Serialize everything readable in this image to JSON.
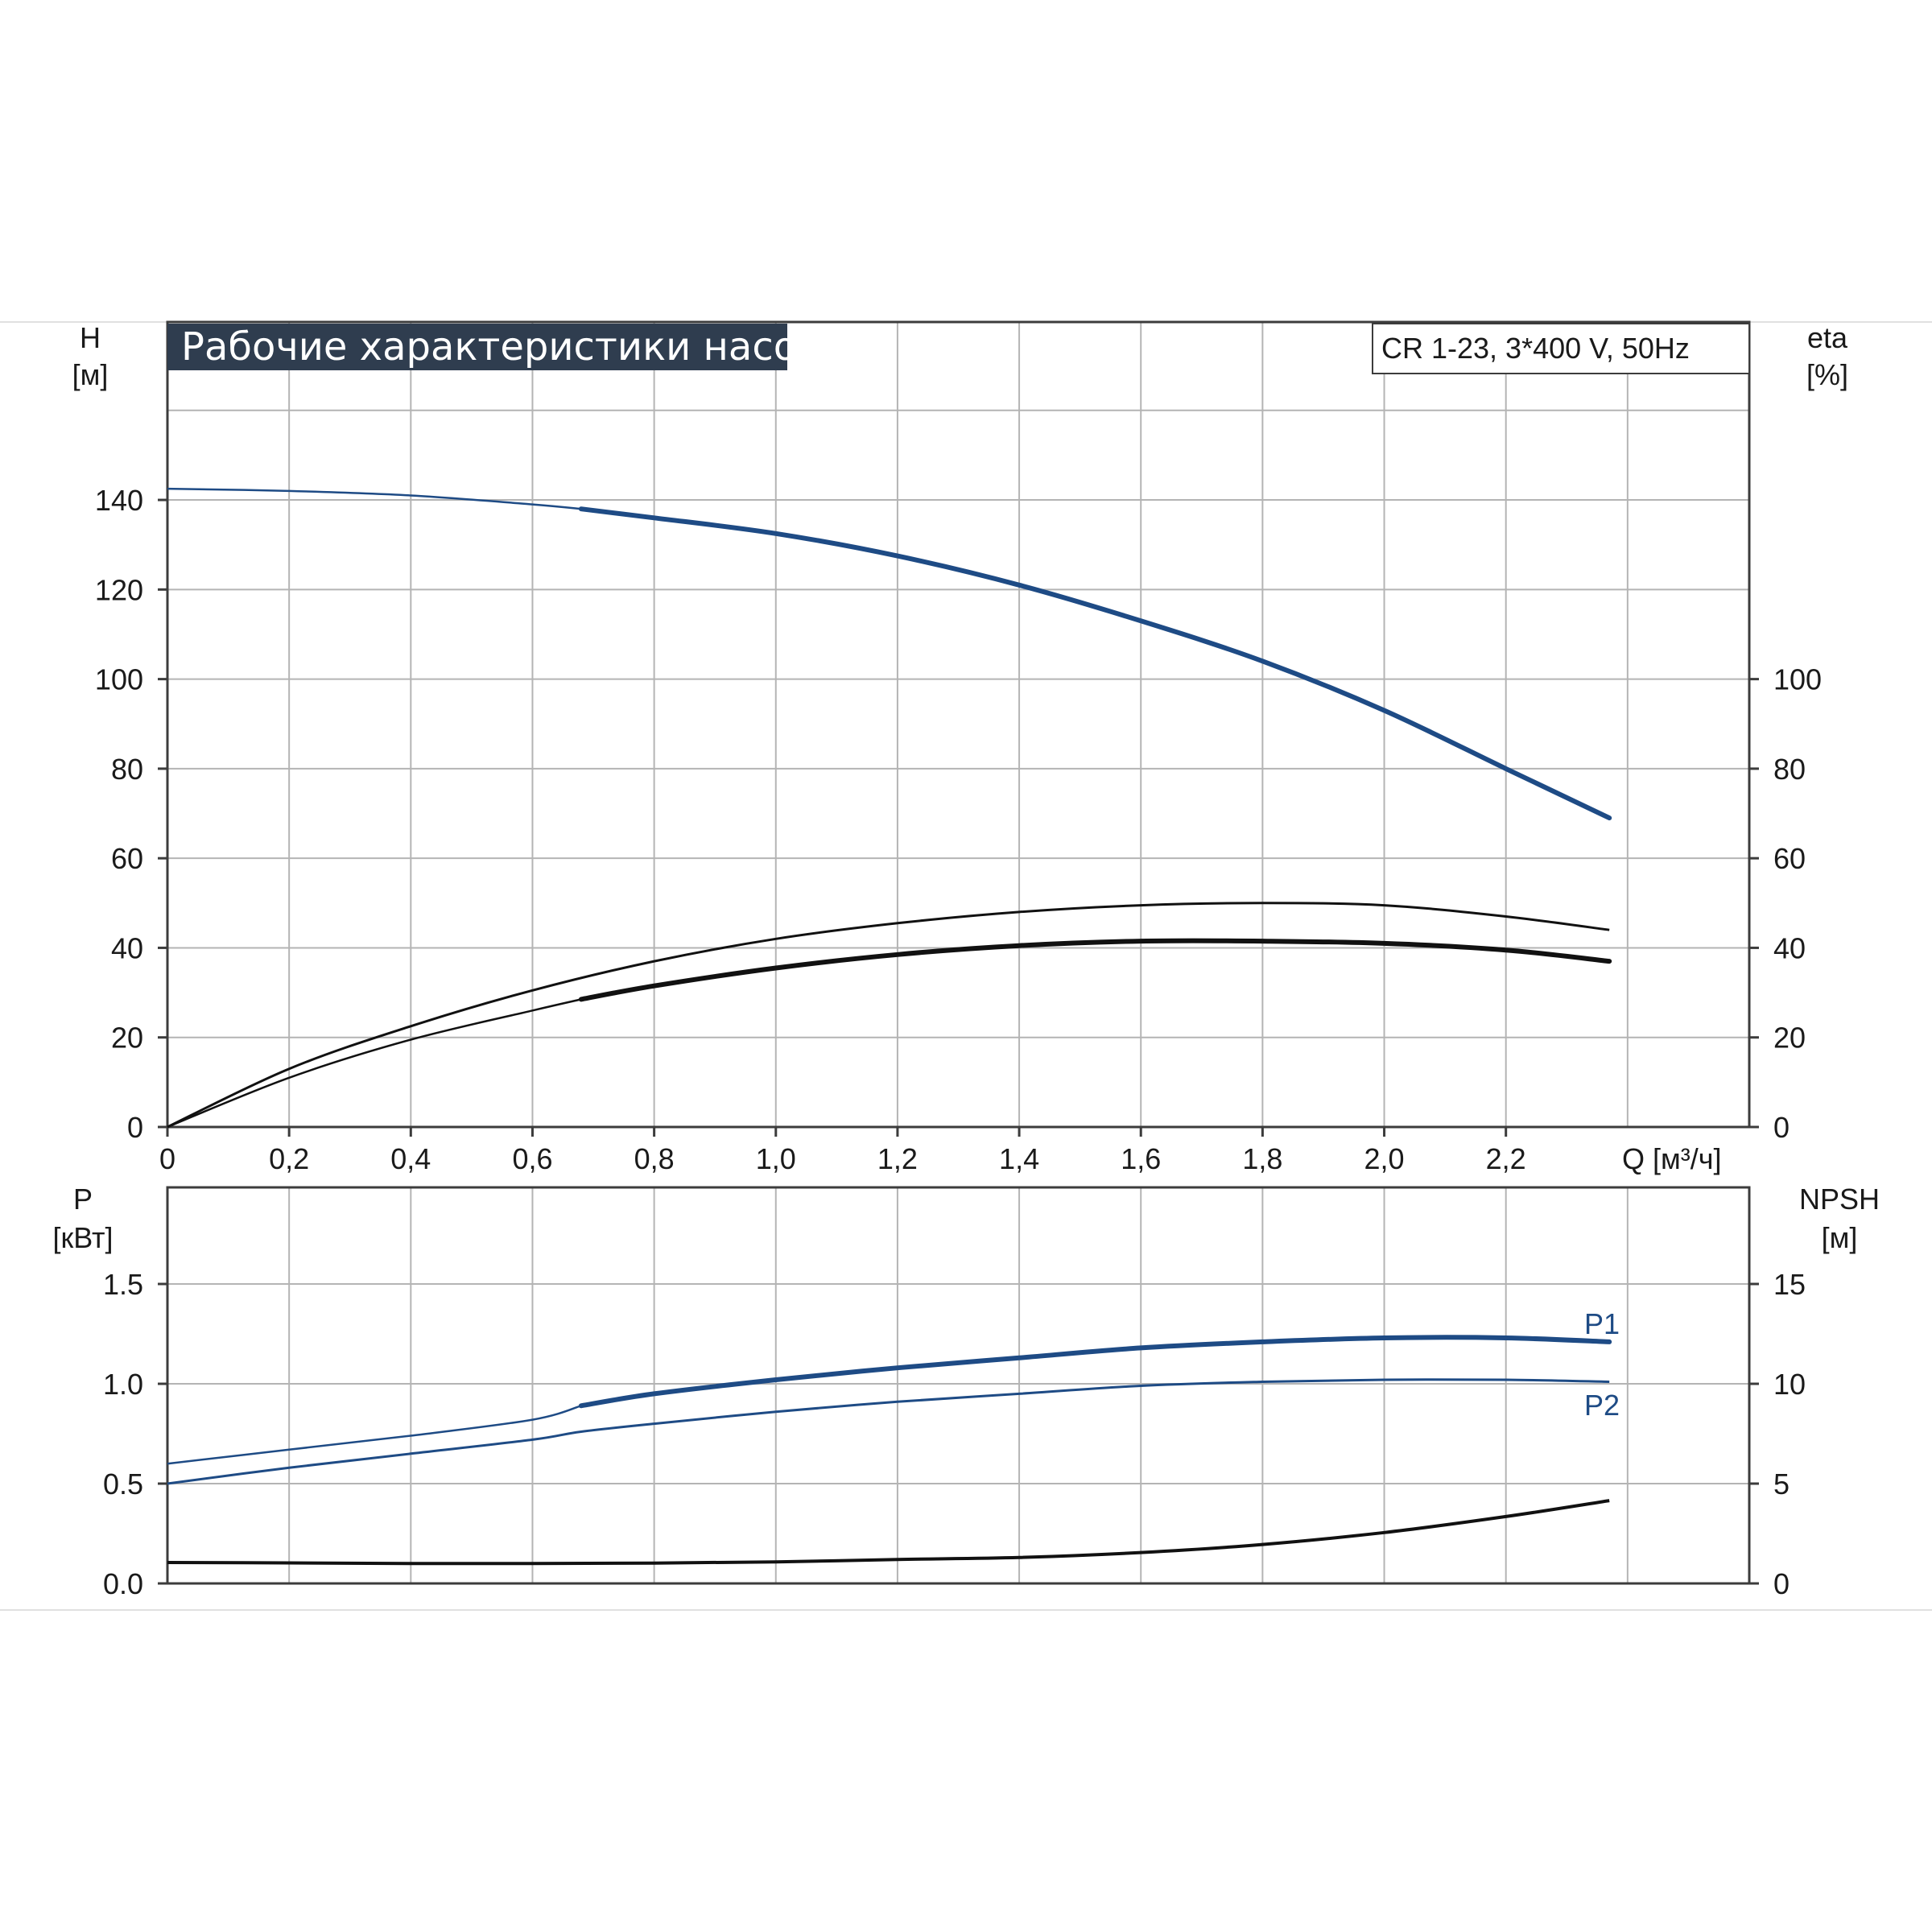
{
  "title": "Рабочие характеристики насоса",
  "subtitle": "CR 1-23, 3*400 V, 50Hz",
  "colors": {
    "blue": "#1e4b85",
    "black": "#111111",
    "title_bg": "#2f3d4f",
    "grid": "#b4b4b4"
  },
  "chart_data": [
    {
      "type": "line",
      "panel": "upper",
      "x_axis": {
        "label": "Q [м³/ч]",
        "ticks": [
          "0",
          "0,2",
          "0,4",
          "0,6",
          "0,8",
          "1,0",
          "1,2",
          "1,4",
          "1,6",
          "1,8",
          "2,0",
          "2,2"
        ],
        "range": [
          0,
          2.6
        ]
      },
      "y_left": {
        "label_line1": "H",
        "label_line2": "[м]",
        "ticks": [
          "0",
          "20",
          "40",
          "60",
          "80",
          "100",
          "120",
          "140"
        ],
        "range": [
          0,
          160
        ]
      },
      "y_right": {
        "label_line1": "eta",
        "label_line2": "[%]",
        "ticks": [
          "0",
          "20",
          "40",
          "60",
          "80",
          "100"
        ],
        "range": [
          0,
          160
        ]
      },
      "grid": true,
      "series": [
        {
          "role": "head",
          "color": "#1e4b85",
          "axis": "left",
          "x": [
            0,
            0.2,
            0.4,
            0.6,
            0.68,
            0.8,
            1.0,
            1.2,
            1.4,
            1.6,
            1.8,
            2.0,
            2.2,
            2.37
          ],
          "y": [
            142.5,
            142,
            141,
            139,
            138,
            136,
            132.5,
            127.5,
            121,
            113,
            104,
            93,
            80,
            69
          ]
        },
        {
          "role": "efficiency upper",
          "color": "#111111",
          "axis": "right",
          "x": [
            0,
            0.2,
            0.4,
            0.6,
            0.8,
            1.0,
            1.2,
            1.4,
            1.6,
            1.8,
            2.0,
            2.2,
            2.37
          ],
          "y": [
            0,
            13,
            22.5,
            30.5,
            37,
            42,
            45.5,
            48,
            49.5,
            50,
            49.5,
            47,
            44
          ]
        },
        {
          "role": "efficiency lower",
          "color": "#111111",
          "axis": "right",
          "x": [
            0,
            0.2,
            0.4,
            0.6,
            0.68,
            0.8,
            1.0,
            1.2,
            1.4,
            1.6,
            1.8,
            2.0,
            2.2,
            2.37
          ],
          "y": [
            0,
            11,
            19.5,
            26,
            28.5,
            31.5,
            35.5,
            38.5,
            40.5,
            41.5,
            41.5,
            41,
            39.5,
            37
          ]
        }
      ]
    },
    {
      "type": "line",
      "panel": "lower",
      "x_axis": {
        "range": [
          0,
          2.6
        ]
      },
      "y_left": {
        "label_line1": "P",
        "label_line2": "[кВт]",
        "ticks": [
          "0.0",
          "0.5",
          "1.0",
          "1.5"
        ],
        "range": [
          0,
          2.0
        ]
      },
      "y_right": {
        "label_line1": "NPSH",
        "label_line2": "[м]",
        "ticks": [
          "0",
          "5",
          "10",
          "15"
        ],
        "range": [
          0,
          20
        ]
      },
      "grid": true,
      "series": [
        {
          "name": "P1",
          "color": "#1e4b85",
          "axis": "left",
          "x": [
            0,
            0.2,
            0.4,
            0.6,
            0.68,
            0.8,
            1.0,
            1.2,
            1.4,
            1.6,
            1.8,
            2.0,
            2.2,
            2.37
          ],
          "y": [
            0.6,
            0.67,
            0.74,
            0.82,
            0.89,
            0.95,
            1.02,
            1.08,
            1.13,
            1.18,
            1.21,
            1.23,
            1.23,
            1.21
          ]
        },
        {
          "name": "P2",
          "color": "#1e4b85",
          "axis": "left",
          "x": [
            0,
            0.2,
            0.4,
            0.6,
            0.68,
            0.8,
            1.0,
            1.2,
            1.4,
            1.6,
            1.8,
            2.0,
            2.2,
            2.37
          ],
          "y": [
            0.5,
            0.58,
            0.65,
            0.72,
            0.76,
            0.8,
            0.86,
            0.91,
            0.95,
            0.99,
            1.01,
            1.02,
            1.02,
            1.01
          ]
        },
        {
          "role": "NPSH",
          "color": "#111111",
          "axis": "right",
          "x": [
            0,
            0.2,
            0.4,
            0.6,
            0.8,
            1.0,
            1.2,
            1.4,
            1.6,
            1.8,
            2.0,
            2.2,
            2.37
          ],
          "y": [
            1.05,
            1.03,
            1.0,
            1.0,
            1.02,
            1.08,
            1.2,
            1.3,
            1.55,
            1.95,
            2.55,
            3.35,
            4.15
          ]
        }
      ]
    }
  ]
}
